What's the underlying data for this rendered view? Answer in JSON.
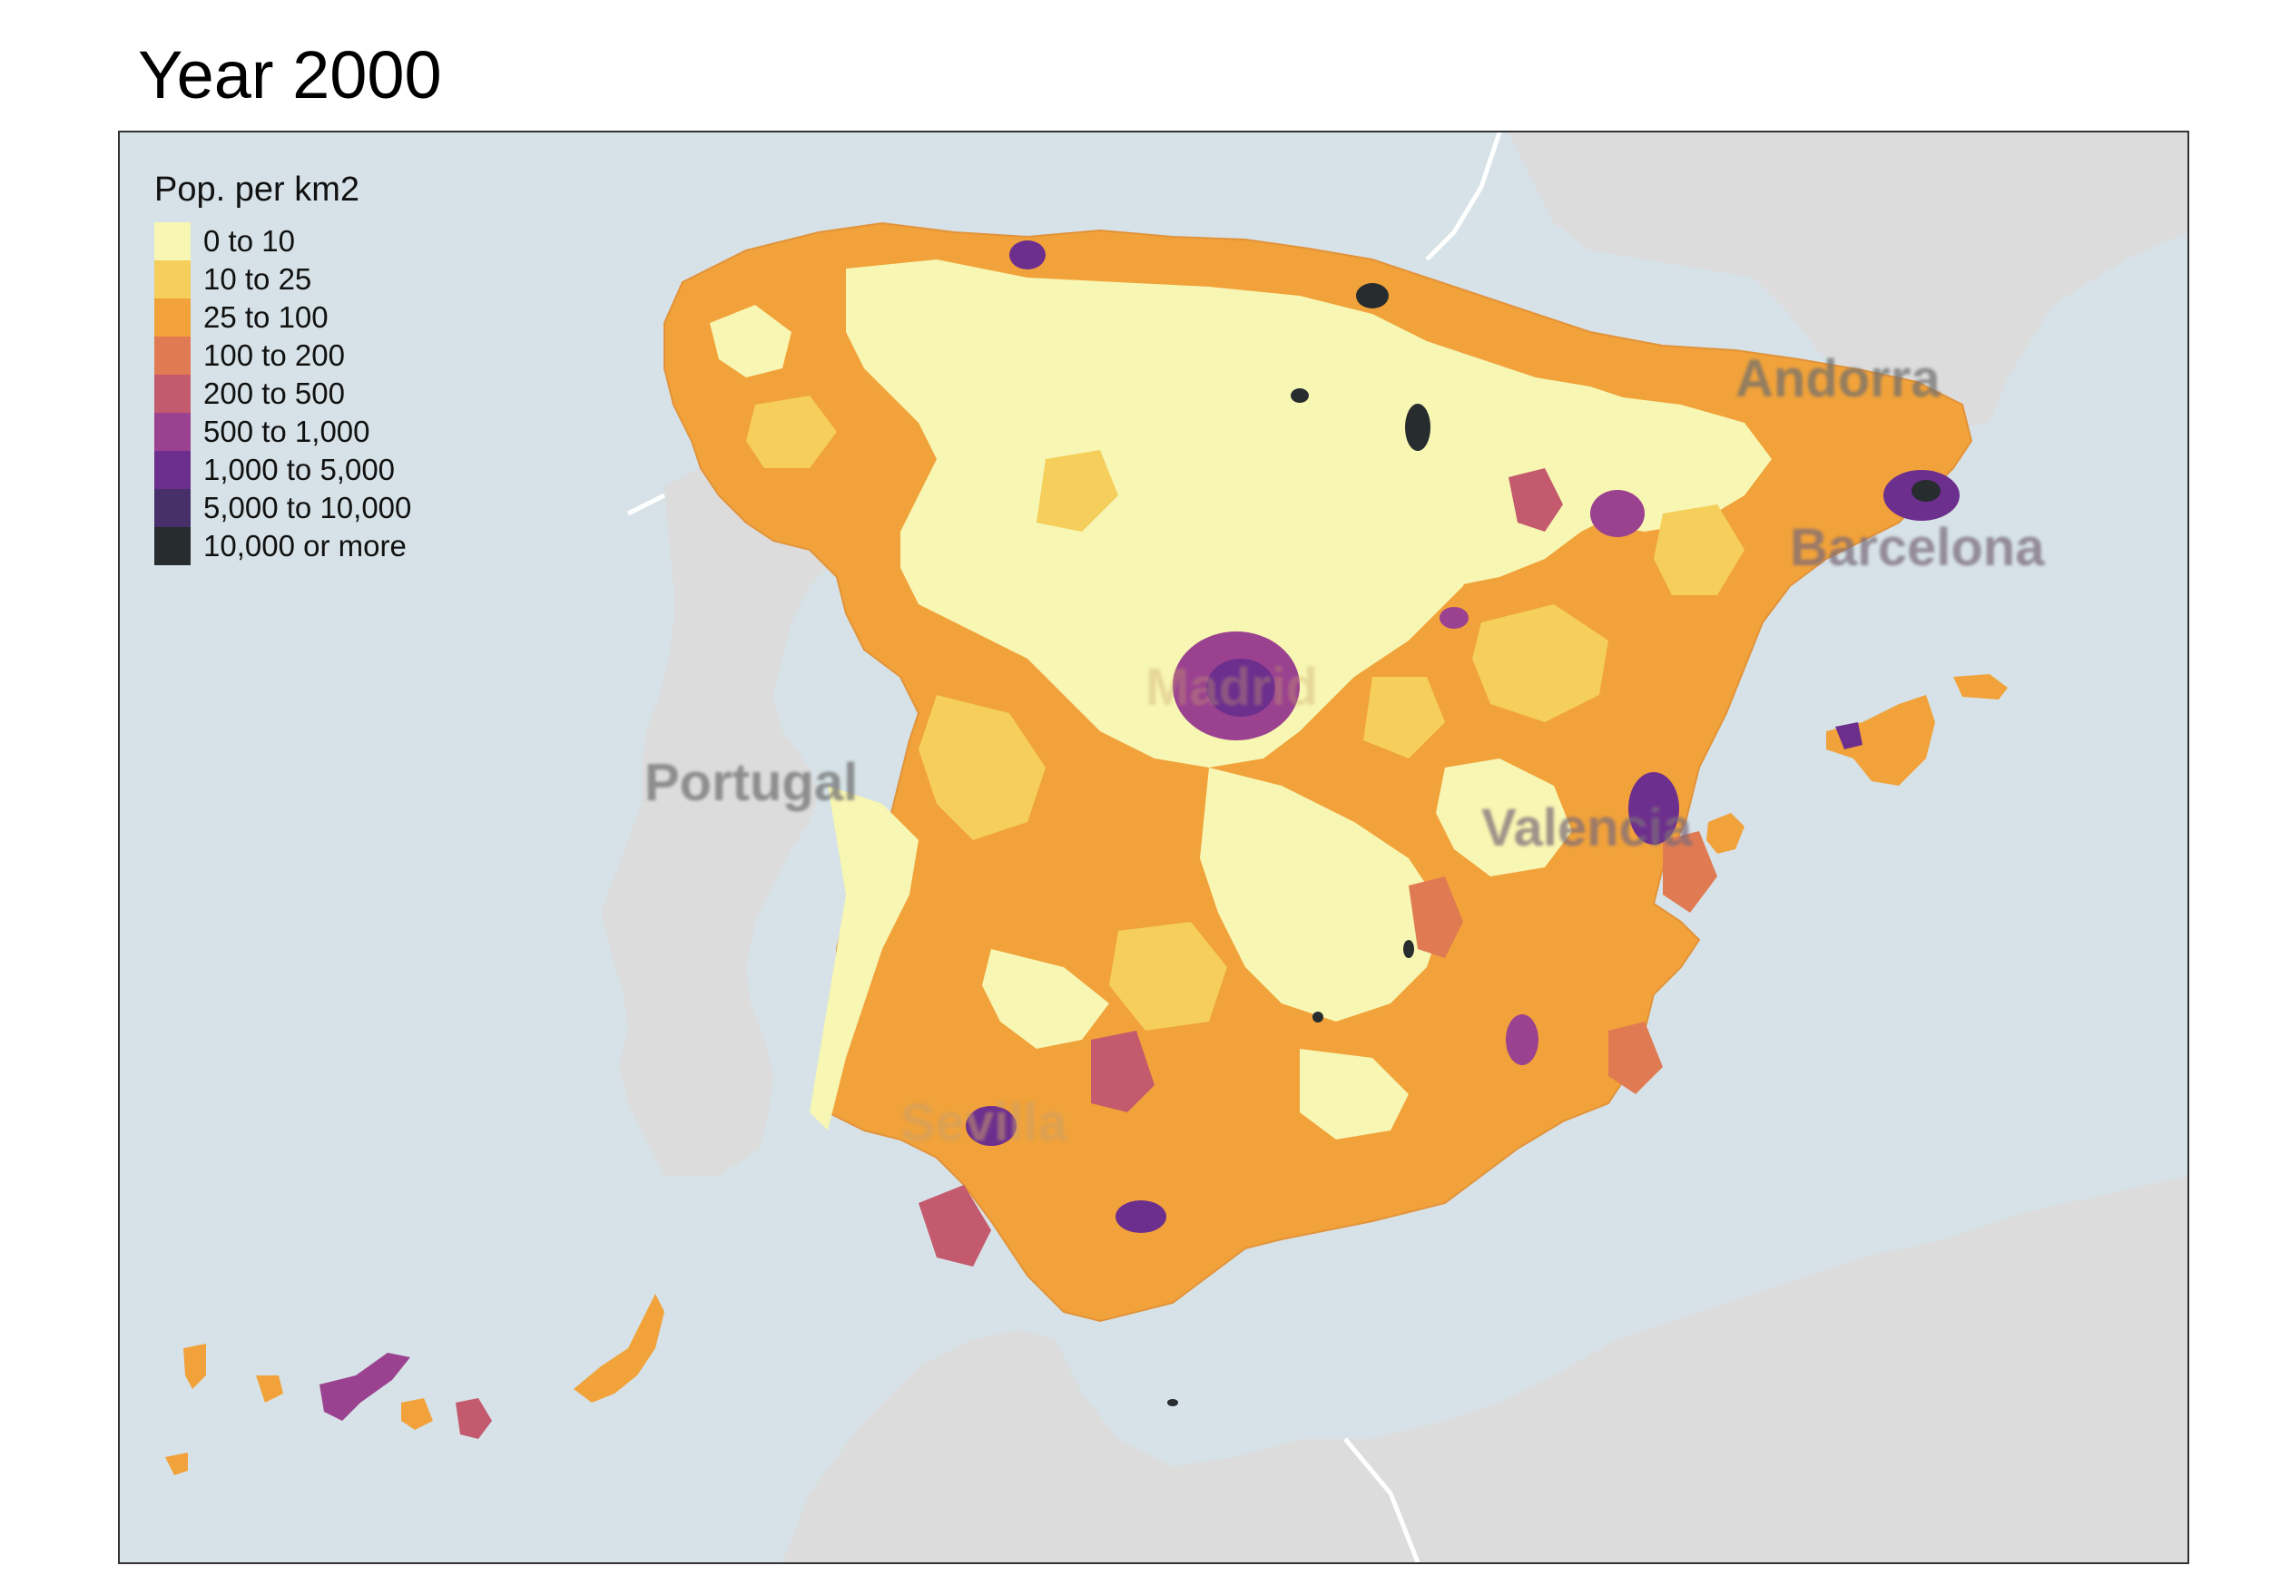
{
  "title": "Year 2000",
  "legend": {
    "title": "Pop. per km2",
    "classes": [
      {
        "label": "0 to 10",
        "color": "#f7f6b2"
      },
      {
        "label": "10 to 25",
        "color": "#f5ce5c"
      },
      {
        "label": "25 to 100",
        "color": "#f1a23a"
      },
      {
        "label": "100 to 200",
        "color": "#e07a52"
      },
      {
        "label": "200 to 500",
        "color": "#c35a6e"
      },
      {
        "label": "500 to 1,000",
        "color": "#9a4190"
      },
      {
        "label": "1,000 to 5,000",
        "color": "#6d2f8e"
      },
      {
        "label": "5,000 to 10,000",
        "color": "#47306a"
      },
      {
        "label": "10,000 or more",
        "color": "#272c2f"
      }
    ]
  },
  "basemap_labels": {
    "andorra": "Andorra",
    "barcelona": "Barcelona",
    "portugal": "Portugal",
    "valencia": "Valencia",
    "sevilla": "Sevilla",
    "madrid": "Madrid"
  },
  "colors": {
    "sea": "#d6e2e7",
    "land": "#dcdcdc",
    "borders": "#ffffff"
  }
}
